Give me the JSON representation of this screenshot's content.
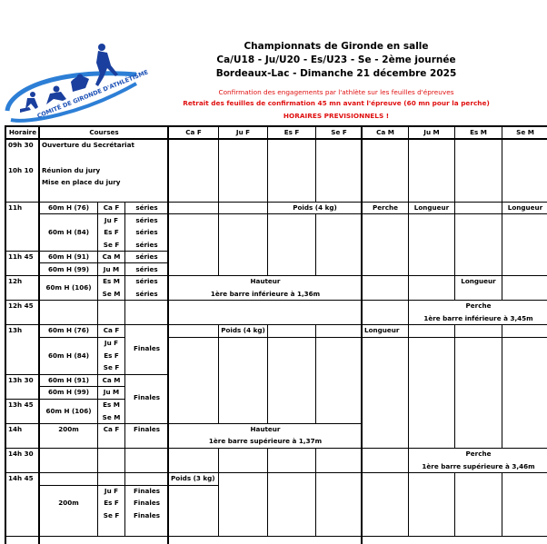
{
  "header": {
    "title": "Championnats de Gironde en salle",
    "subtitle": "Ca/U18 - Ju/U20 - Es/U23 - Se   -   2ème journée",
    "venue_date": "Bordeaux-Lac   -   Dimanche  21 décembre 2025",
    "note1": "Confirmation des engagements par l'athlète sur les feuilles d'épreuves",
    "note2": "Retrait des feuilles de confirmation 45 mn avant l'épreuve (60 mn pour la perche)",
    "note3": "HORAIRES PREVISIONNELS !",
    "logo_text": "COMITÉ DE GIRONDE D'ATHLÉTISME",
    "logo_color": "#1a4fb5",
    "accent_red": "#e01010"
  },
  "table": {
    "columns": [
      "Horaire",
      "Courses",
      "Ca F",
      "Ju F",
      "Es F",
      "Se F",
      "Ca M",
      "Ju M",
      "Es M",
      "Se M"
    ],
    "times": [
      "09h 30",
      "10h 10",
      "11h",
      "11h 45",
      "12h",
      "12h 45",
      "13h",
      "13h 30",
      "13h 45",
      "14h",
      "14h 30",
      "14h 45"
    ],
    "secretariat": [
      "Ouverture du Secrétariat",
      "Réunion du jury",
      "Mise en place du jury"
    ],
    "races": [
      {
        "event": "60m H (76)",
        "categories": [
          "Ca F"
        ],
        "phase": [
          "séries"
        ]
      },
      {
        "event": "60m H (84)",
        "categories": [
          "Ju F",
          "Es F",
          "Se F"
        ],
        "phase": [
          "séries",
          "séries",
          "séries"
        ]
      },
      {
        "event": "60m H (91)",
        "categories": [
          "Ca M"
        ],
        "phase": [
          "séries"
        ]
      },
      {
        "event": "60m H (99)",
        "categories": [
          "Ju M"
        ],
        "phase": [
          "séries"
        ]
      },
      {
        "event": "60m H (106)",
        "categories": [
          "Es M",
          "Se M"
        ],
        "phase": [
          "séries",
          "séries"
        ]
      },
      {
        "event": "60m H (76)",
        "categories": [
          "Ca F"
        ],
        "phase": []
      },
      {
        "event": "60m H (84)",
        "categories": [
          "Ju F",
          "Es F",
          "Se F"
        ],
        "phase": [
          "Finales"
        ]
      },
      {
        "event": "60m H (91)",
        "categories": [
          "Ca M"
        ],
        "phase": []
      },
      {
        "event": "60m H (99)",
        "categories": [
          "Ju M"
        ],
        "phase": []
      },
      {
        "event": "60m H (106)",
        "categories": [
          "Es M",
          "Se M"
        ],
        "phase": [
          "Finales"
        ]
      },
      {
        "event": "200m",
        "categories": [
          "Ca F"
        ],
        "phase": [
          "Finales"
        ]
      },
      {
        "event": "200m",
        "categories": [
          "Ju F",
          "Es F",
          "Se F"
        ],
        "phase": [
          "Finales",
          "Finales",
          "Finales"
        ]
      }
    ],
    "field_events": [
      {
        "name": "Poids (4 kg)"
      },
      {
        "name": "Perche"
      },
      {
        "name": "Longueur"
      },
      {
        "name": "Longueur"
      },
      {
        "name": "Hauteur",
        "detail": "1ère barre inférieure à 1,36m"
      },
      {
        "name": "Longueur"
      },
      {
        "name": "Perche",
        "detail": "1ère barre inférieure à 3,45m"
      },
      {
        "name": "Poids (4 kg)"
      },
      {
        "name": "Longueur"
      },
      {
        "name": "Hauteur",
        "detail": "1ère barre supérieure à 1,37m"
      },
      {
        "name": "Perche",
        "detail": "1ère barre supérieure à 3,46m"
      },
      {
        "name": "Poids (3 kg)"
      }
    ]
  }
}
